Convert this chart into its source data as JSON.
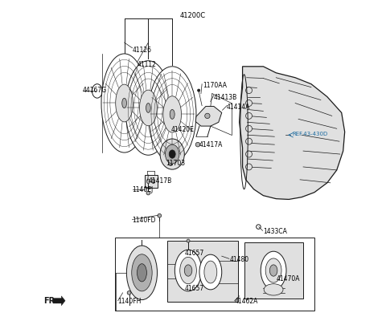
{
  "bg_color": "#ffffff",
  "fig_w": 4.8,
  "fig_h": 4.0,
  "dpi": 100,
  "labels": {
    "41200C": [
      0.5,
      0.955,
      "center",
      "black",
      6.0
    ],
    "41126": [
      0.31,
      0.845,
      "left",
      "black",
      5.5
    ],
    "41112": [
      0.325,
      0.8,
      "left",
      "black",
      5.5
    ],
    "44167G": [
      0.155,
      0.72,
      "left",
      "black",
      5.5
    ],
    "1170AA": [
      0.53,
      0.735,
      "left",
      "black",
      5.5
    ],
    "41413B": [
      0.565,
      0.698,
      "left",
      "black",
      5.5
    ],
    "41414A": [
      0.605,
      0.668,
      "left",
      "black",
      5.5
    ],
    "41420E": [
      0.43,
      0.598,
      "left",
      "black",
      5.5
    ],
    "41417A": [
      0.52,
      0.548,
      "left",
      "black",
      5.5
    ],
    "REF.43-430D": [
      0.81,
      0.582,
      "left",
      "#1a6aa0",
      5.0
    ],
    "11703": [
      0.415,
      0.49,
      "left",
      "black",
      5.5
    ],
    "41417B": [
      0.36,
      0.435,
      "left",
      "black",
      5.5
    ],
    "1140EJ": [
      0.31,
      0.408,
      "left",
      "black",
      5.5
    ],
    "1140FD": [
      0.31,
      0.312,
      "left",
      "black",
      5.5
    ],
    "1433CA": [
      0.72,
      0.278,
      "left",
      "black",
      5.5
    ],
    "41480": [
      0.615,
      0.188,
      "left",
      "black",
      5.5
    ],
    "41657a": [
      0.475,
      0.208,
      "left",
      "black",
      5.5
    ],
    "41657b": [
      0.475,
      0.098,
      "left",
      "black",
      5.5
    ],
    "41470A": [
      0.76,
      0.128,
      "left",
      "black",
      5.5
    ],
    "41462A": [
      0.63,
      0.058,
      "left",
      "black",
      5.5
    ],
    "1140FH": [
      0.265,
      0.058,
      "left",
      "black",
      5.5
    ]
  },
  "label_texts": {
    "41200C": "41200C",
    "41126": "41126",
    "41112": "41112",
    "44167G": "44167G",
    "1170AA": "1170AA",
    "41413B": "41413B",
    "41414A": "41414A",
    "41420E": "41420E",
    "41417A": "41417A",
    "REF.43-430D": "REF.43-430D",
    "11703": "11703",
    "41417B": "41417B",
    "1140EJ": "1140EJ",
    "1140FD": "1140FD",
    "1433CA": "1433CA",
    "41480": "41480",
    "41657a": "41657",
    "41657b": "41657",
    "41470A": "41470A",
    "41462A": "41462A",
    "1140FH": "1140FH"
  }
}
